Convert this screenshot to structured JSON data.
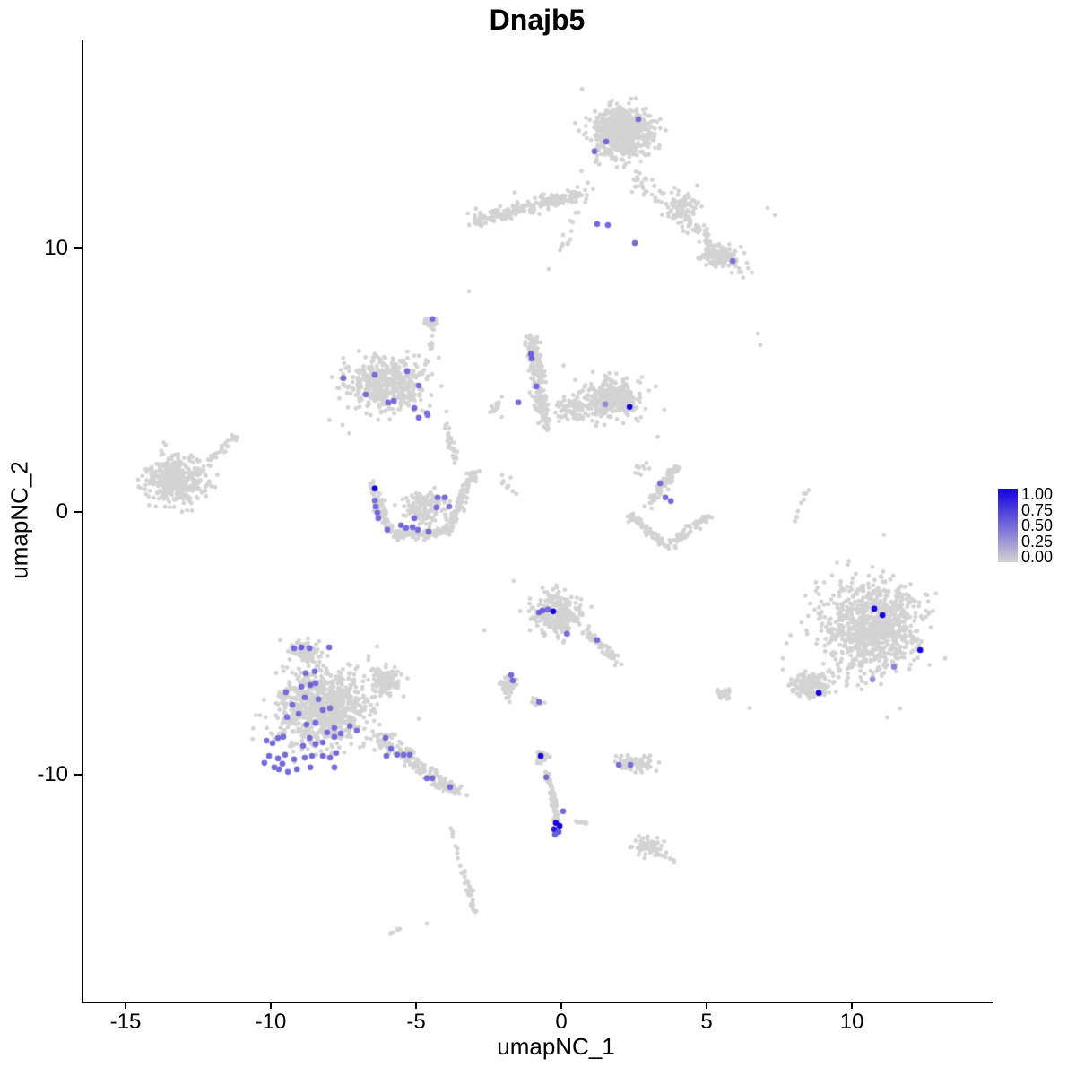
{
  "chart_data": {
    "type": "scatter",
    "title": "Dnajb5",
    "xlabel": "umapNC_1",
    "ylabel": "umapNC_2",
    "xlim": [
      -16.45,
      14.78
    ],
    "ylim": [
      -18.54,
      17.92
    ],
    "x_ticks": [
      -15,
      -10,
      -5,
      0,
      5,
      10
    ],
    "y_ticks": [
      -10,
      0,
      10
    ],
    "grid": false,
    "legend": {
      "position": "right",
      "labels": [
        "1.00",
        "0.75",
        "0.50",
        "0.25",
        "0.00"
      ],
      "low_color": "#D3D3D3",
      "high_color": "#1400E1"
    },
    "point_colors": {
      "base": "#D3D3D3",
      "high": "#1400E1"
    },
    "background_clusters": [
      {
        "type": "blob",
        "cx": 2.07,
        "cy": 14.41,
        "rx": 1.55,
        "ry": 1.5,
        "n": 620
      },
      {
        "type": "blob",
        "cx": 2.07,
        "cy": 14.41,
        "rx": 2.05,
        "ry": 1.95,
        "n": 80
      },
      {
        "type": "stripe",
        "x1": 2.28,
        "y1": 12.98,
        "x2": 6.6,
        "y2": 8.89,
        "n": 110,
        "jitter": 0.55
      },
      {
        "type": "blob",
        "cx": 5.37,
        "cy": 9.74,
        "rx": 0.95,
        "ry": 0.75,
        "n": 100
      },
      {
        "type": "blob",
        "cx": 4.14,
        "cy": 11.62,
        "rx": 1.0,
        "ry": 0.85,
        "n": 70
      },
      {
        "type": "stripe",
        "x1": -3.12,
        "y1": 11.01,
        "x2": 0.68,
        "y2": 12.13,
        "n": 200,
        "jitter": 0.38
      },
      {
        "type": "stripe",
        "x1": -3.12,
        "y1": 11.01,
        "x2": 0.68,
        "y2": 12.13,
        "n": 30,
        "jitter": 0.85
      },
      {
        "type": "stripe",
        "x1": -0.49,
        "y1": 8.89,
        "x2": 1.05,
        "y2": 12.64,
        "n": 16,
        "jitter": 0.3
      },
      {
        "type": "blob",
        "cx": -6.05,
        "cy": 4.8,
        "rx": 2.1,
        "ry": 1.55,
        "n": 430
      },
      {
        "type": "blob",
        "cx": -6.05,
        "cy": 4.8,
        "rx": 2.6,
        "ry": 2.0,
        "n": 60
      },
      {
        "type": "stripe",
        "x1": -4.97,
        "y1": 4.46,
        "x2": -4.2,
        "y2": 7.36,
        "n": 22,
        "jitter": 0.18
      },
      {
        "type": "blob",
        "cx": -4.51,
        "cy": 7.19,
        "rx": 0.38,
        "ry": 0.34,
        "n": 22
      },
      {
        "type": "stripe",
        "x1": -1.05,
        "y1": 6.68,
        "x2": -0.52,
        "y2": 3.1,
        "n": 190,
        "jitter": 0.42
      },
      {
        "type": "blob",
        "cx": 1.67,
        "cy": 4.29,
        "rx": 1.7,
        "ry": 1.3,
        "n": 360
      },
      {
        "type": "blob",
        "cx": 0.43,
        "cy": 3.92,
        "rx": 0.95,
        "ry": 0.8,
        "n": 90
      },
      {
        "type": "blob",
        "cx": -2.3,
        "cy": 3.9,
        "rx": 0.5,
        "ry": 0.55,
        "n": 16
      },
      {
        "type": "blob",
        "cx": -13.24,
        "cy": 1.19,
        "rx": 1.7,
        "ry": 1.5,
        "n": 400
      },
      {
        "type": "stripe",
        "x1": -12.07,
        "y1": 2.01,
        "x2": -11.2,
        "y2": 2.83,
        "n": 26,
        "jitter": 0.22
      },
      {
        "type": "stripe",
        "x1": -6.5,
        "y1": 1.0,
        "x2": -5.85,
        "y2": -0.85,
        "n": 90,
        "jitter": 0.3
      },
      {
        "type": "stripe",
        "x1": -5.85,
        "y1": -0.9,
        "x2": -3.95,
        "y2": -0.75,
        "n": 110,
        "jitter": 0.3
      },
      {
        "type": "stripe",
        "x1": -3.95,
        "y1": -0.75,
        "x2": -3.0,
        "y2": 1.55,
        "n": 100,
        "jitter": 0.32
      },
      {
        "type": "blob",
        "cx": -4.7,
        "cy": 0.15,
        "rx": 1.25,
        "ry": 0.85,
        "n": 140
      },
      {
        "type": "stripe",
        "x1": -4.05,
        "y1": 3.35,
        "x2": -3.55,
        "y2": 1.85,
        "n": 26,
        "jitter": 0.25
      },
      {
        "type": "blob",
        "cx": -1.9,
        "cy": 1.05,
        "rx": 0.5,
        "ry": 0.5,
        "n": 8
      },
      {
        "type": "stripe",
        "x1": 2.28,
        "y1": -0.14,
        "x2": 3.67,
        "y2": -1.33,
        "n": 60,
        "jitter": 0.28
      },
      {
        "type": "stripe",
        "x1": 3.67,
        "y1": -1.33,
        "x2": 5.06,
        "y2": -0.14,
        "n": 60,
        "jitter": 0.28
      },
      {
        "type": "stripe",
        "x1": 2.96,
        "y1": 0.2,
        "x2": 3.98,
        "y2": 1.74,
        "n": 70,
        "jitter": 0.3
      },
      {
        "type": "blob",
        "cx": 2.7,
        "cy": 1.6,
        "rx": 0.4,
        "ry": 0.4,
        "n": 10
      },
      {
        "type": "blob",
        "cx": -8.21,
        "cy": -7.46,
        "rx": 2.5,
        "ry": 2.4,
        "n": 750
      },
      {
        "type": "blob",
        "cx": -8.83,
        "cy": -5.25,
        "rx": 0.95,
        "ry": 0.6,
        "n": 90
      },
      {
        "type": "blob",
        "cx": -6.05,
        "cy": -6.44,
        "rx": 0.95,
        "ry": 0.85,
        "n": 130
      },
      {
        "type": "stripe",
        "x1": -6.36,
        "y1": -8.48,
        "x2": -3.58,
        "y2": -10.7,
        "n": 170,
        "jitter": 0.5
      },
      {
        "type": "blob",
        "cx": -8.21,
        "cy": -7.46,
        "rx": 3.1,
        "ry": 2.9,
        "n": 80
      },
      {
        "type": "blob",
        "cx": -0.12,
        "cy": -3.88,
        "rx": 1.35,
        "ry": 1.3,
        "n": 280
      },
      {
        "type": "stripe",
        "x1": 0.74,
        "y1": -4.4,
        "x2": 1.98,
        "y2": -5.76,
        "n": 50,
        "jitter": 0.3
      },
      {
        "type": "blob",
        "cx": -1.88,
        "cy": -6.61,
        "rx": 0.5,
        "ry": 0.75,
        "n": 40
      },
      {
        "type": "blob",
        "cx": -0.8,
        "cy": -7.29,
        "rx": 0.3,
        "ry": 0.3,
        "n": 10
      },
      {
        "type": "blob",
        "cx": 10.68,
        "cy": -4.4,
        "rx": 2.7,
        "ry": 2.8,
        "n": 850
      },
      {
        "type": "blob",
        "cx": 8.61,
        "cy": -6.61,
        "rx": 1.15,
        "ry": 0.8,
        "n": 140
      },
      {
        "type": "blob",
        "cx": 10.68,
        "cy": -4.4,
        "rx": 3.3,
        "ry": 3.3,
        "n": 70
      },
      {
        "type": "blob",
        "cx": -0.65,
        "cy": -9.34,
        "rx": 0.45,
        "ry": 0.4,
        "n": 26
      },
      {
        "type": "stripe",
        "x1": -0.49,
        "y1": -9.91,
        "x2": -0.12,
        "y2": -11.82,
        "n": 60,
        "jitter": 0.18
      },
      {
        "type": "stripe",
        "x1": 0.28,
        "y1": -11.72,
        "x2": 1.05,
        "y2": -11.89,
        "n": 10,
        "jitter": 0.12
      },
      {
        "type": "blob",
        "cx": 2.53,
        "cy": -9.57,
        "rx": 0.95,
        "ry": 0.5,
        "n": 70
      },
      {
        "type": "blob",
        "cx": 2.9,
        "cy": -12.74,
        "rx": 0.85,
        "ry": 0.6,
        "n": 60
      },
      {
        "type": "stripe",
        "x1": 3.3,
        "y1": -13.0,
        "x2": 3.98,
        "y2": -13.32,
        "n": 12,
        "jitter": 0.15
      },
      {
        "type": "stripe",
        "x1": -3.8,
        "y1": -11.89,
        "x2": -3.52,
        "y2": -13.25,
        "n": 8,
        "jitter": 0.1
      },
      {
        "type": "stripe",
        "x1": -3.43,
        "y1": -13.42,
        "x2": -2.96,
        "y2": -15.3,
        "n": 36,
        "jitter": 0.16
      },
      {
        "type": "stripe",
        "x1": -5.9,
        "y1": -16.05,
        "x2": -5.52,
        "y2": -15.81,
        "n": 6,
        "jitter": 0.08
      },
      {
        "type": "stripe",
        "x1": 8.02,
        "y1": -0.48,
        "x2": 8.46,
        "y2": 0.89,
        "n": 9,
        "jitter": 0.08
      },
      {
        "type": "blob",
        "cx": 5.56,
        "cy": -6.95,
        "rx": 0.5,
        "ry": 0.4,
        "n": 22
      }
    ],
    "background_singles": [
      [
        -3.18,
        8.38
      ],
      [
        6.76,
        6.78
      ],
      [
        6.85,
        6.34
      ],
      [
        6.48,
        -7.46
      ],
      [
        -2.04,
        1.4
      ],
      [
        -1.67,
        0.78
      ],
      [
        -1.64,
        -2.62
      ],
      [
        -2.65,
        -4.5
      ],
      [
        -0.43,
        9.23
      ],
      [
        0.06,
        10.53
      ],
      [
        -4.63,
        -15.64
      ],
      [
        7.1,
        11.55
      ],
      [
        7.35,
        11.28
      ]
    ],
    "expressed_points": [
      [
        2.65,
        14.92,
        0.5
      ],
      [
        1.54,
        14.07,
        0.5
      ],
      [
        1.14,
        13.7,
        0.5
      ],
      [
        1.23,
        10.94,
        0.5
      ],
      [
        1.6,
        10.9,
        0.5
      ],
      [
        2.53,
        10.22,
        0.5
      ],
      [
        5.9,
        9.54,
        0.45
      ],
      [
        -4.44,
        7.33,
        0.5
      ],
      [
        -7.5,
        5.08,
        0.5
      ],
      [
        -6.42,
        5.21,
        0.5
      ],
      [
        -5.31,
        5.35,
        0.5
      ],
      [
        -6.73,
        4.46,
        0.5
      ],
      [
        -4.91,
        4.8,
        0.5
      ],
      [
        -5.96,
        4.16,
        0.5
      ],
      [
        -5.77,
        4.22,
        0.5
      ],
      [
        -5.06,
        3.95,
        0.5
      ],
      [
        -4.63,
        3.75,
        0.5
      ],
      [
        -4.6,
        3.68,
        0.45
      ],
      [
        -4.91,
        3.58,
        0.5
      ],
      [
        -1.05,
        6.0,
        0.55
      ],
      [
        -1.02,
        5.83,
        0.55
      ],
      [
        -0.86,
        4.77,
        0.5
      ],
      [
        -1.48,
        4.16,
        0.5
      ],
      [
        1.51,
        4.09,
        0.35
      ],
      [
        2.35,
        3.99,
        1.0
      ],
      [
        -6.42,
        0.89,
        1.0
      ],
      [
        -6.42,
        0.44,
        0.5
      ],
      [
        -6.39,
        0.2,
        0.5
      ],
      [
        -6.33,
        -0.03,
        0.5
      ],
      [
        -6.3,
        -0.24,
        0.5
      ],
      [
        -5.99,
        -0.68,
        0.5
      ],
      [
        -5.52,
        -0.51,
        0.5
      ],
      [
        -5.34,
        -0.61,
        0.5
      ],
      [
        -5.12,
        -0.58,
        0.5
      ],
      [
        -4.94,
        -0.68,
        0.5
      ],
      [
        -4.57,
        -0.75,
        0.5
      ],
      [
        -5.06,
        -0.24,
        0.5
      ],
      [
        -4.26,
        0.55,
        0.5
      ],
      [
        -4.01,
        0.55,
        0.5
      ],
      [
        -4.29,
        0.17,
        0.5
      ],
      [
        -3.86,
        0.2,
        0.45
      ],
      [
        3.4,
        1.09,
        0.5
      ],
      [
        3.58,
        0.55,
        0.5
      ],
      [
        3.77,
        0.41,
        0.5
      ],
      [
        10.77,
        -3.68,
        1.0
      ],
      [
        11.05,
        -3.92,
        1.0
      ],
      [
        12.35,
        -5.25,
        1.0
      ],
      [
        11.45,
        -5.89,
        0.4
      ],
      [
        10.71,
        -6.37,
        0.3
      ],
      [
        8.86,
        -6.88,
        1.0
      ],
      [
        -0.77,
        -3.82,
        0.55
      ],
      [
        -0.65,
        -3.75,
        0.55
      ],
      [
        -0.46,
        -3.71,
        0.5
      ],
      [
        -0.28,
        -3.78,
        1.0
      ],
      [
        0.19,
        -4.63,
        0.5
      ],
      [
        1.23,
        -4.87,
        0.5
      ],
      [
        -1.73,
        -6.2,
        0.5
      ],
      [
        -1.67,
        -6.41,
        0.5
      ],
      [
        -0.77,
        -7.22,
        0.5
      ],
      [
        -9.2,
        -5.18,
        0.5
      ],
      [
        -8.95,
        -5.15,
        0.55
      ],
      [
        -8.67,
        -5.18,
        0.5
      ],
      [
        -7.99,
        -5.15,
        0.5
      ],
      [
        -8.8,
        -6.13,
        0.5
      ],
      [
        -8.49,
        -6.06,
        0.5
      ],
      [
        -8.95,
        -6.64,
        0.5
      ],
      [
        -8.64,
        -6.58,
        0.55
      ],
      [
        -8.46,
        -6.51,
        0.5
      ],
      [
        -9.48,
        -6.85,
        0.5
      ],
      [
        -8.83,
        -7.05,
        0.5
      ],
      [
        -8.36,
        -7.12,
        0.5
      ],
      [
        -9.26,
        -7.33,
        0.5
      ],
      [
        -9.04,
        -7.67,
        0.5
      ],
      [
        -9.44,
        -7.8,
        0.5
      ],
      [
        -8.21,
        -7.53,
        0.5
      ],
      [
        -7.96,
        -7.46,
        0.5
      ],
      [
        -8.77,
        -8.08,
        0.5
      ],
      [
        -8.46,
        -8.01,
        0.5
      ],
      [
        -9.75,
        -8.59,
        0.5
      ],
      [
        -10.15,
        -8.69,
        0.5
      ],
      [
        -9.94,
        -8.79,
        0.5
      ],
      [
        -9.57,
        -8.55,
        0.5
      ],
      [
        -7.59,
        -8.42,
        0.5
      ],
      [
        -7.81,
        -8.21,
        0.5
      ],
      [
        -7.28,
        -8.14,
        0.5
      ],
      [
        -7.04,
        -8.31,
        0.5
      ],
      [
        -8.06,
        -8.38,
        0.5
      ],
      [
        -7.81,
        -8.55,
        0.5
      ],
      [
        -8.21,
        -8.76,
        0.5
      ],
      [
        -8.67,
        -8.59,
        0.5
      ],
      [
        -8.46,
        -8.82,
        0.5
      ],
      [
        -8.89,
        -8.89,
        0.5
      ],
      [
        -10.06,
        -9.27,
        0.5
      ],
      [
        -9.75,
        -9.37,
        0.5
      ],
      [
        -9.51,
        -9.23,
        0.5
      ],
      [
        -9.2,
        -9.4,
        0.5
      ],
      [
        -10.22,
        -9.54,
        0.5
      ],
      [
        -9.88,
        -9.71,
        0.5
      ],
      [
        -9.6,
        -9.57,
        0.5
      ],
      [
        -8.83,
        -9.34,
        0.5
      ],
      [
        -8.58,
        -9.27,
        0.5
      ],
      [
        -8.21,
        -9.27,
        0.5
      ],
      [
        -7.96,
        -9.34,
        0.5
      ],
      [
        -7.75,
        -9.16,
        0.5
      ],
      [
        -9.72,
        -9.78,
        0.5
      ],
      [
        -9.41,
        -9.88,
        0.5
      ],
      [
        -9.1,
        -9.78,
        0.5
      ],
      [
        -8.64,
        -9.71,
        0.5
      ],
      [
        -7.81,
        -9.71,
        0.5
      ],
      [
        -6.05,
        -8.59,
        0.5
      ],
      [
        -5.86,
        -9.0,
        0.5
      ],
      [
        -6.02,
        -9.27,
        0.5
      ],
      [
        -5.65,
        -9.23,
        0.5
      ],
      [
        -5.43,
        -9.23,
        0.5
      ],
      [
        -5.22,
        -9.23,
        0.5
      ],
      [
        -4.63,
        -10.12,
        0.5
      ],
      [
        -4.44,
        -10.12,
        0.5
      ],
      [
        -3.83,
        -10.46,
        0.5
      ],
      [
        -0.52,
        -10.08,
        0.5
      ],
      [
        0.06,
        -11.38,
        0.5
      ],
      [
        -0.19,
        -11.82,
        1.0
      ],
      [
        -0.06,
        -11.93,
        1.0
      ],
      [
        -0.25,
        -12.06,
        0.9
      ],
      [
        -0.09,
        -12.16,
        0.6
      ],
      [
        -0.22,
        -12.26,
        0.55
      ],
      [
        -0.71,
        -9.27,
        1.0
      ],
      [
        1.98,
        -9.61,
        0.5
      ],
      [
        2.38,
        -9.61,
        0.5
      ]
    ]
  }
}
